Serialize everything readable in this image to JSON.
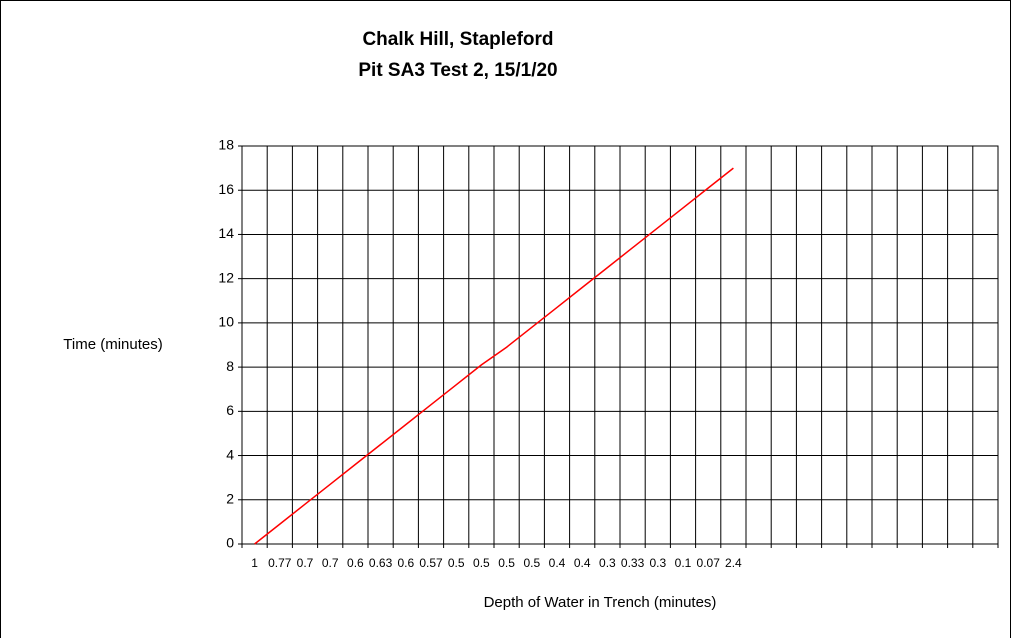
{
  "chart_data": {
    "type": "line",
    "title": "Chalk Hill, Stapleford",
    "subtitle": "Pit SA3 Test 2, 15/1/20",
    "x_label": "Depth of Water in Trench (minutes)",
    "y_label": "Time (minutes)",
    "categories": [
      "1",
      "0.77",
      "0.7",
      "0.7",
      "0.6",
      "0.63",
      "0.6",
      "0.57",
      "0.5",
      "0.5",
      "0.5",
      "0.5",
      "0.4",
      "0.4",
      "0.3",
      "0.33",
      "0.3",
      "0.1",
      "0.07",
      "2.4",
      null,
      null,
      null,
      null,
      null,
      null,
      null,
      null,
      null,
      null
    ],
    "series": [
      {
        "name": "Time",
        "color": "#ff0000",
        "values": [
          0,
          0.9,
          1.8,
          2.7,
          3.6,
          4.5,
          5.4,
          6.3,
          7.2,
          8.1,
          8.9,
          9.8,
          10.7,
          11.6,
          12.5,
          13.4,
          14.3,
          15.2,
          16.1,
          17,
          null,
          null,
          null,
          null,
          null,
          null,
          null,
          null,
          null,
          null
        ]
      }
    ],
    "ylim": [
      0,
      18
    ],
    "yticks": [
      0,
      2,
      4,
      6,
      8,
      10,
      12,
      14,
      16,
      18
    ],
    "grid": true
  }
}
